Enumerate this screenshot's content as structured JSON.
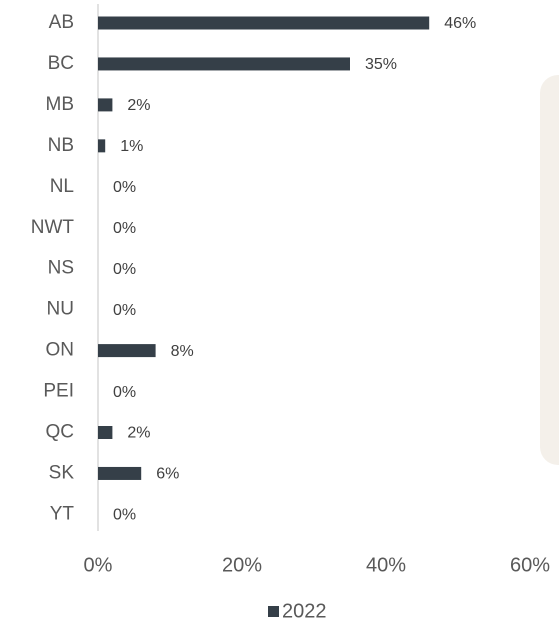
{
  "chart_data": {
    "type": "bar",
    "orientation": "horizontal",
    "categories": [
      "AB",
      "BC",
      "MB",
      "NB",
      "NL",
      "NWT",
      "NS",
      "NU",
      "ON",
      "PEI",
      "QC",
      "SK",
      "YT"
    ],
    "series": [
      {
        "name": "2022",
        "color": "#353f48",
        "values": [
          46,
          35,
          2,
          1,
          0,
          0,
          0,
          0,
          8,
          0,
          2,
          6,
          0
        ],
        "value_labels": [
          "46%",
          "35%",
          "2%",
          "1%",
          "0%",
          "0%",
          "0%",
          "0%",
          "8%",
          "0%",
          "2%",
          "6%",
          "0%"
        ]
      }
    ],
    "xlim": [
      0,
      60
    ],
    "xticks": [
      {
        "value": 0,
        "label": "0%"
      },
      {
        "value": 20,
        "label": "20%"
      },
      {
        "value": 40,
        "label": "40%"
      },
      {
        "value": 60,
        "label": "60%"
      }
    ],
    "legend": "bottom"
  }
}
